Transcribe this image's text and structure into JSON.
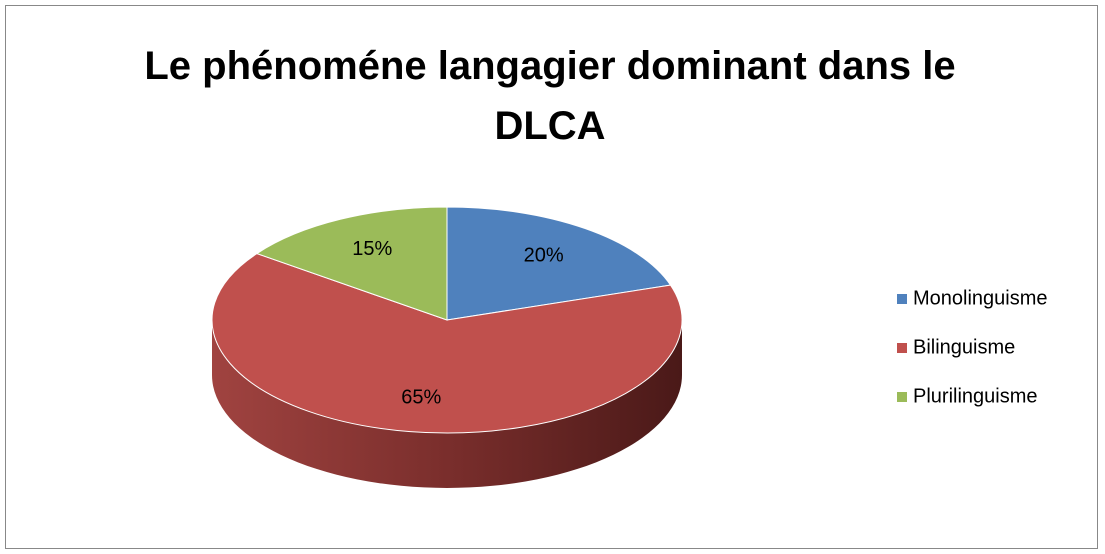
{
  "chart_data": {
    "type": "pie3d",
    "title": "Le phénoméne langagier dominant dans le DLCA",
    "categories": [
      "Monolinguisme",
      "Bilinguisme",
      "Plurilinguisme"
    ],
    "values": [
      20,
      65,
      15
    ],
    "value_labels": [
      "20%",
      "65%",
      "15%"
    ],
    "colors": [
      "#4f81bd",
      "#c0504d",
      "#9bbb59"
    ],
    "legend": "right"
  }
}
